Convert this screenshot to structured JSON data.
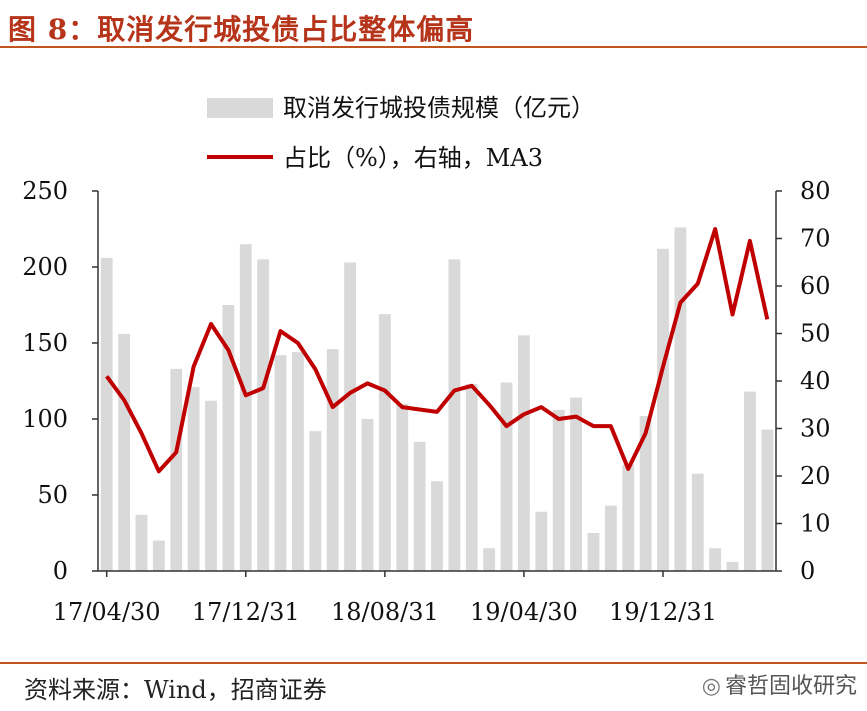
{
  "header": {
    "title": "图  8：取消发行城投债占比整体偏高"
  },
  "footer": {
    "source": "资料来源：Wind，招商证券",
    "watermark": "睿哲固收研究"
  },
  "colors": {
    "bar": "#d9d9d9",
    "line": "#c00000",
    "accent": "#c0541e",
    "title": "#b5341a"
  },
  "chart_data": {
    "type": "bar",
    "title": "",
    "legend_position": "top",
    "grid": false,
    "x_tick_labels": [
      "17/04/30",
      "17/12/31",
      "18/08/31",
      "19/04/30",
      "19/12/31"
    ],
    "x_tick_indices": [
      0,
      8,
      16,
      24,
      32
    ],
    "y_left": {
      "ticks": [
        0,
        50,
        100,
        150,
        200,
        250
      ],
      "lim": [
        0,
        250
      ]
    },
    "y_right": {
      "ticks": [
        0,
        10,
        20,
        30,
        40,
        50,
        60,
        70,
        80
      ],
      "lim": [
        0,
        80
      ]
    },
    "series": [
      {
        "name": "取消发行城投债规模（亿元）",
        "type": "bar",
        "axis": "left",
        "values": [
          206,
          156,
          37,
          20,
          133,
          121,
          112,
          175,
          215,
          205,
          142,
          144,
          92,
          146,
          203,
          100,
          169,
          110,
          85,
          59,
          205,
          123,
          15,
          124,
          155,
          39,
          106,
          114,
          25,
          43,
          70,
          102,
          212,
          226,
          64,
          15,
          6,
          118,
          93
        ]
      },
      {
        "name": "占比（%），右轴，MA3",
        "type": "line",
        "axis": "right",
        "values": [
          41,
          36,
          29,
          21,
          25,
          43,
          52,
          46.5,
          37,
          38.5,
          50.5,
          48,
          42.5,
          34.5,
          37.5,
          39.5,
          38,
          34.5,
          34,
          33.5,
          38,
          39,
          35,
          30.5,
          33,
          34.5,
          32,
          32.5,
          30.5,
          30.5,
          21.5,
          29,
          43,
          56.5,
          60.5,
          72,
          54,
          69.5,
          53
        ]
      }
    ]
  }
}
